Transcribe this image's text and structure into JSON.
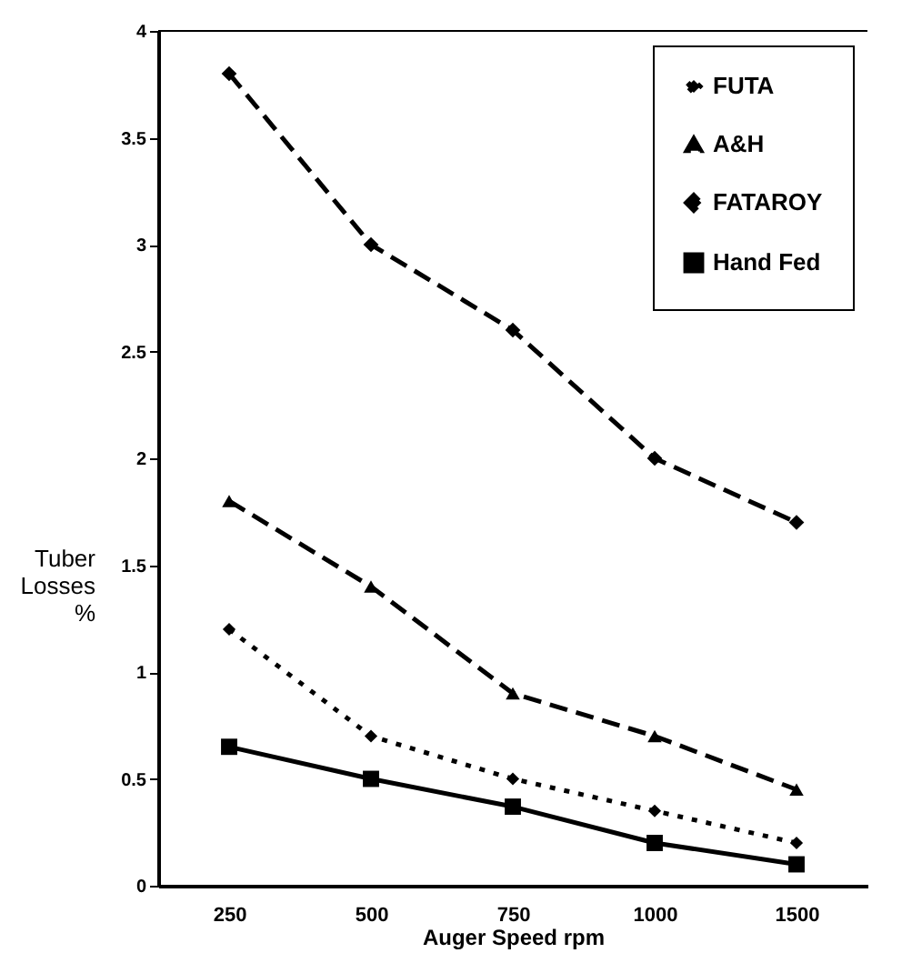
{
  "chart_data": {
    "type": "line",
    "xlabel": "Auger Speed    rpm",
    "ylabel": "Tuber Losses %",
    "categories": [
      "250",
      "500",
      "750",
      "1000",
      "1500"
    ],
    "series": [
      {
        "name": "FUTA",
        "color": "#000000",
        "marker": "diamond",
        "line_style": "dotted",
        "values": [
          1.2,
          0.7,
          0.5,
          0.35,
          0.2
        ]
      },
      {
        "name": "A&H",
        "color": "#000000",
        "marker": "triangle",
        "line_style": "dashed",
        "values": [
          1.8,
          1.4,
          0.9,
          0.7,
          0.45
        ]
      },
      {
        "name": "FATAROY",
        "color": "#000000",
        "marker": "diamond",
        "line_style": "dashed",
        "values": [
          3.8,
          3.0,
          2.6,
          2.0,
          1.7
        ]
      },
      {
        "name": "Hand Fed",
        "color": "#000000",
        "marker": "square",
        "line_style": "solid",
        "values": [
          0.65,
          0.5,
          0.37,
          0.2,
          0.1
        ]
      }
    ],
    "ylim": [
      0,
      4
    ],
    "yticks": [
      0,
      0.5,
      1,
      1.5,
      2,
      2.5,
      3,
      3.5,
      4
    ],
    "grid": false,
    "legend": "top right"
  }
}
